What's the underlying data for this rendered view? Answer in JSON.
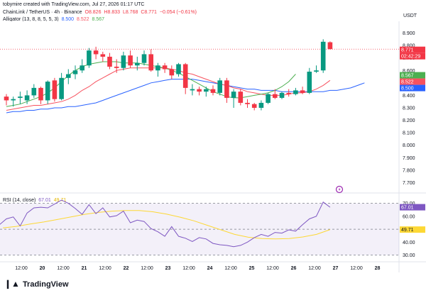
{
  "header": {
    "credit": "tobymire created with TradingView.com, Jul 27, 2026 01:17 UTC"
  },
  "legend": {
    "symbol": "ChainLink / TetherUS · 4h · Binance",
    "ohlc": [
      "O8.826",
      "H8.833",
      "L8.768",
      "C8.771",
      "−0.054 (−0.61%)"
    ],
    "alligator_label": "Alligator (13, 8, 8, 5, 5, 3)",
    "alligator_values": [
      "8.500",
      "8.522",
      "8.567"
    ],
    "rsi_label": "RSI (14, close)",
    "rsi_value": "67.01",
    "rsi_ma_value": "49.71"
  },
  "axis": {
    "unit": "USDT",
    "price_ticks": [
      "8.900",
      "8.800",
      "8.700",
      "8.600",
      "8.500",
      "8.400",
      "8.300",
      "8.200",
      "8.100",
      "8.000",
      "7.900",
      "7.800",
      "7.700"
    ],
    "rsi_ticks": [
      "70.00",
      "60.00",
      "50.00",
      "40.00",
      "30.00"
    ],
    "price_badges": {
      "close": "8.771",
      "countdown": "02:42:29",
      "jaw": "8.500",
      "teeth": "8.522",
      "lips": "8.567"
    },
    "rsi_badges": {
      "rsi": "67.01",
      "ma": "49.71"
    },
    "time_ticks": [
      "12:00",
      "20",
      "12:00",
      "21",
      "12:00",
      "22",
      "12:00",
      "23",
      "12:00",
      "24",
      "12:00",
      "25",
      "12:00",
      "26",
      "12:00",
      "27",
      "12:00",
      "28"
    ]
  },
  "colors": {
    "up": "#089981",
    "down": "#f23645",
    "jaw": "#2962ff",
    "teeth": "#f7525f",
    "lips": "#4caf50",
    "rsi": "#7e57c2",
    "rsi_ma": "#fdd835"
  },
  "footer": {
    "brand": "TradingView"
  },
  "chart_data": [
    {
      "type": "candlestick",
      "title": "ChainLink / TetherUS · 4h · Binance",
      "ylim": [
        7.64,
        8.96
      ],
      "ylabel": "USDT",
      "candles": [
        {
          "o": 8.39,
          "h": 8.41,
          "l": 8.32,
          "c": 8.36
        },
        {
          "o": 8.36,
          "h": 8.39,
          "l": 8.31,
          "c": 8.37
        },
        {
          "o": 8.38,
          "h": 8.43,
          "l": 8.33,
          "c": 8.39
        },
        {
          "o": 8.36,
          "h": 8.44,
          "l": 8.33,
          "c": 8.4
        },
        {
          "o": 8.4,
          "h": 8.49,
          "l": 8.38,
          "c": 8.46
        },
        {
          "o": 8.46,
          "h": 8.47,
          "l": 8.33,
          "c": 8.36
        },
        {
          "o": 8.36,
          "h": 8.52,
          "l": 8.33,
          "c": 8.51
        },
        {
          "o": 8.52,
          "h": 8.54,
          "l": 8.35,
          "c": 8.37
        },
        {
          "o": 8.37,
          "h": 8.58,
          "l": 8.36,
          "c": 8.54
        },
        {
          "o": 8.54,
          "h": 8.61,
          "l": 8.49,
          "c": 8.57
        },
        {
          "o": 8.57,
          "h": 8.64,
          "l": 8.53,
          "c": 8.6
        },
        {
          "o": 8.6,
          "h": 8.69,
          "l": 8.58,
          "c": 8.64
        },
        {
          "o": 8.64,
          "h": 8.78,
          "l": 8.62,
          "c": 8.76
        },
        {
          "o": 8.76,
          "h": 8.79,
          "l": 8.69,
          "c": 8.73
        },
        {
          "o": 8.73,
          "h": 8.75,
          "l": 8.67,
          "c": 8.71
        },
        {
          "o": 8.71,
          "h": 8.74,
          "l": 8.61,
          "c": 8.63
        },
        {
          "o": 8.63,
          "h": 8.69,
          "l": 8.58,
          "c": 8.62
        },
        {
          "o": 8.62,
          "h": 8.75,
          "l": 8.6,
          "c": 8.72
        },
        {
          "o": 8.72,
          "h": 8.76,
          "l": 8.62,
          "c": 8.64
        },
        {
          "o": 8.64,
          "h": 8.71,
          "l": 8.6,
          "c": 8.66
        },
        {
          "o": 8.66,
          "h": 8.76,
          "l": 8.64,
          "c": 8.73
        },
        {
          "o": 8.73,
          "h": 8.77,
          "l": 8.59,
          "c": 8.6
        },
        {
          "o": 8.6,
          "h": 8.66,
          "l": 8.55,
          "c": 8.64
        },
        {
          "o": 8.64,
          "h": 8.66,
          "l": 8.58,
          "c": 8.61
        },
        {
          "o": 8.61,
          "h": 8.64,
          "l": 8.53,
          "c": 8.56
        },
        {
          "o": 8.57,
          "h": 8.66,
          "l": 8.55,
          "c": 8.65
        },
        {
          "o": 8.65,
          "h": 8.66,
          "l": 8.41,
          "c": 8.46
        },
        {
          "o": 8.44,
          "h": 8.49,
          "l": 8.4,
          "c": 8.45
        },
        {
          "o": 8.45,
          "h": 8.47,
          "l": 8.4,
          "c": 8.43
        },
        {
          "o": 8.43,
          "h": 8.47,
          "l": 8.39,
          "c": 8.45
        },
        {
          "o": 8.45,
          "h": 8.48,
          "l": 8.4,
          "c": 8.42
        },
        {
          "o": 8.42,
          "h": 8.54,
          "l": 8.4,
          "c": 8.52
        },
        {
          "o": 8.52,
          "h": 8.54,
          "l": 8.34,
          "c": 8.38
        },
        {
          "o": 8.38,
          "h": 8.45,
          "l": 8.3,
          "c": 8.43
        },
        {
          "o": 8.43,
          "h": 8.45,
          "l": 8.32,
          "c": 8.34
        },
        {
          "o": 8.34,
          "h": 8.37,
          "l": 8.3,
          "c": 8.33
        },
        {
          "o": 8.33,
          "h": 8.34,
          "l": 8.28,
          "c": 8.3
        },
        {
          "o": 8.3,
          "h": 8.36,
          "l": 8.28,
          "c": 8.34
        },
        {
          "o": 8.34,
          "h": 8.42,
          "l": 8.33,
          "c": 8.41
        },
        {
          "o": 8.41,
          "h": 8.45,
          "l": 8.37,
          "c": 8.38
        },
        {
          "o": 8.38,
          "h": 8.43,
          "l": 8.37,
          "c": 8.42
        },
        {
          "o": 8.42,
          "h": 8.45,
          "l": 8.39,
          "c": 8.41
        },
        {
          "o": 8.41,
          "h": 8.46,
          "l": 8.4,
          "c": 8.44
        },
        {
          "o": 8.44,
          "h": 8.47,
          "l": 8.41,
          "c": 8.42
        },
        {
          "o": 8.42,
          "h": 8.62,
          "l": 8.41,
          "c": 8.59
        },
        {
          "o": 8.59,
          "h": 8.64,
          "l": 8.58,
          "c": 8.6
        },
        {
          "o": 8.6,
          "h": 8.85,
          "l": 8.58,
          "c": 8.83
        },
        {
          "o": 8.826,
          "h": 8.833,
          "l": 8.768,
          "c": 8.771
        }
      ],
      "jaw": [
        8.26,
        8.27,
        8.27,
        8.28,
        8.28,
        8.29,
        8.29,
        8.3,
        8.3,
        8.31,
        8.31,
        8.32,
        8.33,
        8.34,
        8.36,
        8.38,
        8.4,
        8.42,
        8.44,
        8.46,
        8.48,
        8.5,
        8.51,
        8.52,
        8.53,
        8.53,
        8.53,
        8.53,
        8.52,
        8.51,
        8.5,
        8.49,
        8.48,
        8.47,
        8.46,
        8.45,
        8.45,
        8.44,
        8.44,
        8.44,
        8.43,
        8.43,
        8.43,
        8.43,
        8.43,
        8.43,
        8.43,
        8.44,
        8.44,
        8.45,
        8.46,
        8.48,
        8.5
      ],
      "teeth": [
        8.28,
        8.29,
        8.3,
        8.31,
        8.32,
        8.32,
        8.33,
        8.34,
        8.35,
        8.37,
        8.4,
        8.44,
        8.47,
        8.51,
        8.54,
        8.57,
        8.6,
        8.61,
        8.62,
        8.62,
        8.62,
        8.62,
        8.62,
        8.62,
        8.61,
        8.6,
        8.58,
        8.57,
        8.55,
        8.53,
        8.51,
        8.49,
        8.48,
        8.46,
        8.45,
        8.43,
        8.42,
        8.41,
        8.4,
        8.4,
        8.4,
        8.41,
        8.42,
        8.42,
        8.43,
        8.45,
        8.48,
        8.52
      ],
      "lips": [
        8.31,
        8.32,
        8.33,
        8.35,
        8.37,
        8.39,
        8.42,
        8.46,
        8.51,
        8.56,
        8.6,
        8.63,
        8.65,
        8.66,
        8.67,
        8.67,
        8.67,
        8.66,
        8.66,
        8.66,
        8.65,
        8.64,
        8.63,
        8.62,
        8.6,
        8.58,
        8.55,
        8.52,
        8.49,
        8.46,
        8.43,
        8.41,
        8.39,
        8.38,
        8.38,
        8.39,
        8.4,
        8.41,
        8.42,
        8.44,
        8.47,
        8.51,
        8.57
      ]
    },
    {
      "type": "line",
      "title": "RSI (14, close)",
      "ylim": [
        27,
        72
      ],
      "series": [
        {
          "name": "RSI",
          "values": [
            57.5,
            56.0,
            57.5,
            53.5,
            58.0,
            59.5,
            52.5,
            62.5,
            66.5,
            67.0,
            66.5,
            69.5,
            72.5,
            70.0,
            66.0,
            61.5,
            69.0,
            62.0,
            66.5,
            59.5,
            60.5,
            64.0,
            55.0,
            57.0,
            56.0,
            50.5,
            48.0,
            44.5,
            52.0,
            44.5,
            43.0,
            40.5,
            43.5,
            42.5,
            39.0,
            38.0,
            37.5,
            36.5,
            37.5,
            40.0,
            43.5,
            46.0,
            44.5,
            47.5,
            47.0,
            49.5,
            48.5,
            53.5,
            58.0,
            60.0,
            71.0,
            67.0
          ]
        },
        {
          "name": "MA",
          "values": [
            51.0,
            52.2,
            54.0,
            55.6,
            57.5,
            59.5,
            61.5,
            63.0,
            64.0,
            64.5,
            64.4,
            63.5,
            61.7,
            59.3,
            56.5,
            53.0,
            49.5,
            46.0,
            43.8,
            42.8,
            42.5,
            42.8,
            44.0,
            46.0,
            49.7
          ]
        }
      ]
    }
  ]
}
